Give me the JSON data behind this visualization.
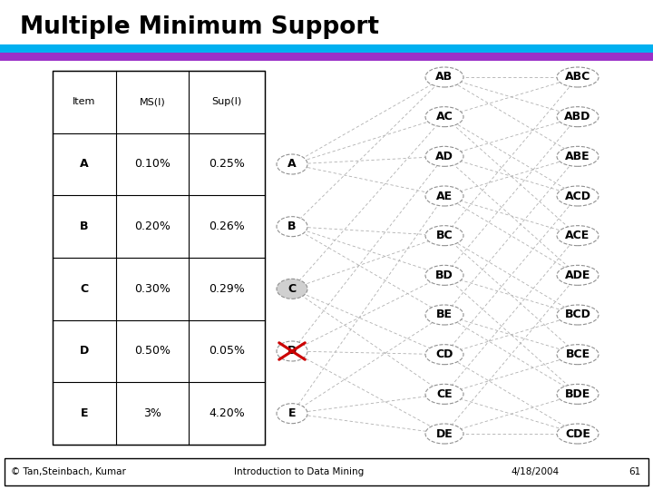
{
  "title": "Multiple Minimum Support",
  "bg_color": "#ffffff",
  "header_bar1_color": "#00b0f0",
  "header_bar2_color": "#9b30c8",
  "footer_text_left": "© Tan,Steinbach, Kumar",
  "footer_text_mid": "Introduction to Data Mining",
  "footer_text_right1": "4/18/2004",
  "footer_text_right2": "61",
  "table": {
    "headers": [
      "Item",
      "MS(I)",
      "Sup(I)"
    ],
    "rows": [
      [
        "A",
        "0.10%",
        "0.25%"
      ],
      [
        "B",
        "0.20%",
        "0.26%"
      ],
      [
        "C",
        "0.30%",
        "0.29%"
      ],
      [
        "D",
        "0.50%",
        "0.05%"
      ],
      [
        "E",
        "3%",
        "4.20%"
      ]
    ]
  },
  "level1_nodes": [
    "A",
    "B",
    "C",
    "D",
    "E"
  ],
  "level2_nodes": [
    "AB",
    "AC",
    "AD",
    "AE",
    "BC",
    "BD",
    "BE",
    "CD",
    "CE",
    "DE"
  ],
  "level3_nodes": [
    "ABC",
    "ABD",
    "ABE",
    "ACD",
    "ACE",
    "ADE",
    "BCD",
    "BCE",
    "BDE",
    "CDE"
  ],
  "crossed_node": "D",
  "shaded_node": "C"
}
